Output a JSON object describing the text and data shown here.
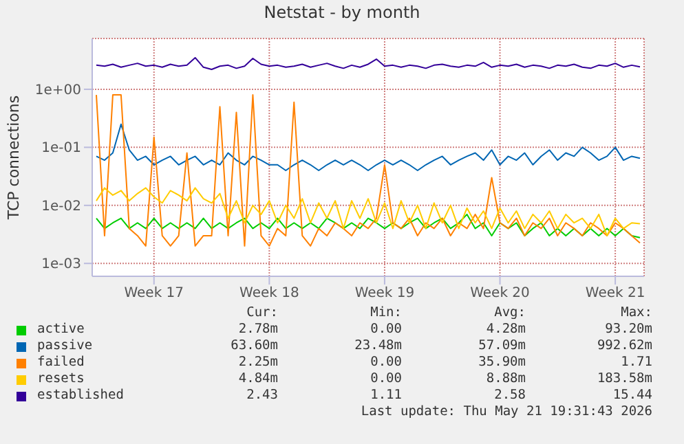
{
  "chart_data": {
    "type": "line",
    "title": "Netstat - by month",
    "ylabel": "TCP connections",
    "categories": [
      null,
      null,
      null,
      null,
      null,
      null,
      null,
      "Week 17",
      null,
      null,
      null,
      null,
      null,
      null,
      null,
      null,
      null,
      null,
      null,
      null,
      null,
      "Week 18",
      null,
      null,
      null,
      null,
      null,
      null,
      null,
      null,
      null,
      null,
      null,
      null,
      null,
      "Week 19",
      null,
      null,
      null,
      null,
      null,
      null,
      null,
      null,
      null,
      null,
      null,
      null,
      null,
      "Week 20",
      null,
      null,
      null,
      null,
      null,
      null,
      null,
      null,
      null,
      null,
      null,
      null,
      null,
      "Week 21",
      null,
      null,
      null
    ],
    "series": [
      {
        "name": "active",
        "color": "#00cc00",
        "values": [
          0.006,
          0.004,
          0.005,
          0.006,
          0.004,
          0.005,
          0.004,
          0.006,
          0.004,
          0.005,
          0.004,
          0.005,
          0.004,
          0.006,
          0.004,
          0.005,
          0.004,
          0.005,
          0.006,
          0.004,
          0.005,
          0.004,
          0.006,
          0.004,
          0.005,
          0.004,
          0.005,
          0.004,
          0.006,
          0.005,
          0.004,
          0.005,
          0.004,
          0.006,
          0.005,
          0.004,
          0.005,
          0.004,
          0.005,
          0.006,
          0.004,
          0.005,
          0.006,
          0.004,
          0.005,
          0.007,
          0.004,
          0.005,
          0.003,
          0.005,
          0.004,
          0.005,
          0.003,
          0.004,
          0.005,
          0.003,
          0.004,
          0.003,
          0.004,
          0.003,
          0.004,
          0.003,
          0.004,
          0.003,
          0.004,
          0.003,
          0.00278
        ]
      },
      {
        "name": "passive",
        "color": "#0066b3",
        "values": [
          0.07,
          0.06,
          0.08,
          0.25,
          0.09,
          0.06,
          0.07,
          0.05,
          0.06,
          0.07,
          0.05,
          0.06,
          0.07,
          0.05,
          0.06,
          0.05,
          0.08,
          0.06,
          0.05,
          0.07,
          0.06,
          0.05,
          0.05,
          0.04,
          0.05,
          0.06,
          0.05,
          0.04,
          0.05,
          0.06,
          0.05,
          0.06,
          0.05,
          0.04,
          0.05,
          0.06,
          0.05,
          0.06,
          0.05,
          0.04,
          0.05,
          0.06,
          0.07,
          0.05,
          0.06,
          0.07,
          0.08,
          0.06,
          0.09,
          0.05,
          0.07,
          0.06,
          0.08,
          0.05,
          0.07,
          0.09,
          0.06,
          0.08,
          0.07,
          0.1,
          0.08,
          0.06,
          0.07,
          0.1,
          0.06,
          0.07,
          0.065
        ]
      },
      {
        "name": "failed",
        "color": "#ff8000",
        "values": [
          0.8,
          0.003,
          0.8,
          0.8,
          0.004,
          0.003,
          0.002,
          0.15,
          0.003,
          0.002,
          0.003,
          0.08,
          0.002,
          0.003,
          0.003,
          0.5,
          0.003,
          0.4,
          0.002,
          0.8,
          0.003,
          0.002,
          0.004,
          0.003,
          0.6,
          0.003,
          0.002,
          0.004,
          0.003,
          0.005,
          0.004,
          0.003,
          0.005,
          0.004,
          0.006,
          0.05,
          0.005,
          0.004,
          0.006,
          0.003,
          0.005,
          0.004,
          0.006,
          0.003,
          0.005,
          0.004,
          0.007,
          0.004,
          0.03,
          0.005,
          0.004,
          0.006,
          0.003,
          0.005,
          0.004,
          0.006,
          0.003,
          0.005,
          0.004,
          0.003,
          0.005,
          0.004,
          0.003,
          0.005,
          0.004,
          0.003,
          0.00225
        ]
      },
      {
        "name": "resets",
        "color": "#ffcc00",
        "values": [
          0.012,
          0.02,
          0.015,
          0.018,
          0.012,
          0.016,
          0.02,
          0.014,
          0.011,
          0.018,
          0.015,
          0.012,
          0.02,
          0.013,
          0.011,
          0.016,
          0.006,
          0.012,
          0.005,
          0.01,
          0.007,
          0.012,
          0.005,
          0.01,
          0.006,
          0.013,
          0.005,
          0.011,
          0.006,
          0.012,
          0.004,
          0.012,
          0.006,
          0.013,
          0.005,
          0.011,
          0.004,
          0.012,
          0.005,
          0.01,
          0.004,
          0.011,
          0.005,
          0.01,
          0.004,
          0.009,
          0.005,
          0.008,
          0.004,
          0.009,
          0.005,
          0.008,
          0.004,
          0.007,
          0.005,
          0.008,
          0.004,
          0.007,
          0.005,
          0.006,
          0.004,
          0.007,
          0.003,
          0.006,
          0.004,
          0.005,
          0.00484
        ]
      },
      {
        "name": "established",
        "color": "#330099",
        "values": [
          2.6,
          2.5,
          2.7,
          2.4,
          2.6,
          2.8,
          2.5,
          2.6,
          2.4,
          2.7,
          2.5,
          2.6,
          3.5,
          2.4,
          2.2,
          2.5,
          2.6,
          2.3,
          2.5,
          3.4,
          2.7,
          2.5,
          2.6,
          2.4,
          2.5,
          2.7,
          2.4,
          2.6,
          2.8,
          2.5,
          2.3,
          2.6,
          2.4,
          2.7,
          3.3,
          2.5,
          2.6,
          2.4,
          2.6,
          2.5,
          2.3,
          2.6,
          2.7,
          2.5,
          2.4,
          2.6,
          2.5,
          2.9,
          2.4,
          2.6,
          2.5,
          2.7,
          2.4,
          2.6,
          2.5,
          2.3,
          2.6,
          2.5,
          2.7,
          2.4,
          2.3,
          2.6,
          2.5,
          2.8,
          2.4,
          2.6,
          2.43
        ]
      }
    ],
    "log": "y",
    "ylim": [
      0.0006,
      7.5
    ],
    "yticks": [
      {
        "value": 0.001,
        "label": "1e-03"
      },
      {
        "value": 0.01,
        "label": "1e-02"
      },
      {
        "value": 0.1,
        "label": "1e-01"
      },
      {
        "value": 1,
        "label": "1e+00"
      }
    ],
    "grid": true,
    "marker": "none",
    "line_style": "solid",
    "legend": "bottom",
    "annotations": [
      "Cur:",
      "Min:",
      "Avg:",
      "Max:",
      "2.78m",
      "0.00",
      "4.28m",
      "93.20m",
      "63.60m",
      "23.48m",
      "57.09m",
      "992.62m",
      "2.25m",
      "0.00",
      "35.90m",
      "1.71",
      "4.84m",
      "0.00",
      "8.88m",
      "183.58m",
      "2.43",
      "1.11",
      "2.58",
      "15.44",
      "Last update: Thu May 21 19:31:43 2026"
    ]
  }
}
